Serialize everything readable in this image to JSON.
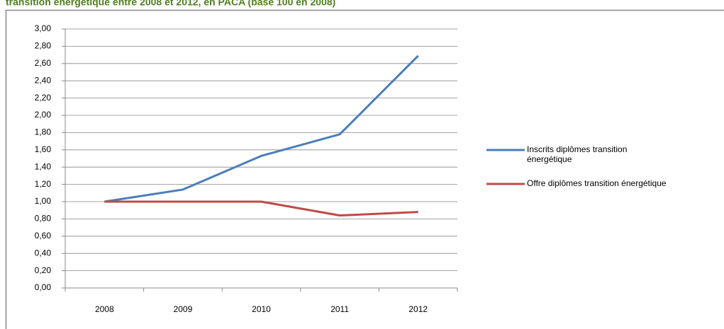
{
  "chart_data": {
    "type": "line",
    "title": "transition énergétique entre 2008 et 2012, en PACA (base 100 en 2008)",
    "categories": [
      "2008",
      "2009",
      "2010",
      "2011",
      "2012"
    ],
    "series": [
      {
        "name": "Inscrits diplômes transition énergétique",
        "color": "#4a7ebb",
        "values": [
          1.0,
          1.14,
          1.53,
          1.78,
          2.69
        ]
      },
      {
        "name": "Offre diplômes transition énergétique",
        "color": "#be4b48",
        "values": [
          1.0,
          1.0,
          1.0,
          0.84,
          0.88
        ]
      }
    ],
    "ylim": [
      0,
      3
    ],
    "yticks": [
      {
        "value": 0,
        "label": "0,00"
      },
      {
        "value": 0.2,
        "label": "0,20"
      },
      {
        "value": 0.4,
        "label": "0,40"
      },
      {
        "value": 0.6,
        "label": "0,60"
      },
      {
        "value": 0.8,
        "label": "0,80"
      },
      {
        "value": 1.0,
        "label": "1,00"
      },
      {
        "value": 1.2,
        "label": "1,20"
      },
      {
        "value": 1.4,
        "label": "1,40"
      },
      {
        "value": 1.6,
        "label": "1,60"
      },
      {
        "value": 1.8,
        "label": "1,80"
      },
      {
        "value": 2.0,
        "label": "2,00"
      },
      {
        "value": 2.2,
        "label": "2,20"
      },
      {
        "value": 2.4,
        "label": "2,40"
      },
      {
        "value": 2.6,
        "label": "2,60"
      },
      {
        "value": 2.8,
        "label": "2,80"
      },
      {
        "value": 3.0,
        "label": "3,00"
      }
    ],
    "grid": true,
    "legend": "right"
  }
}
